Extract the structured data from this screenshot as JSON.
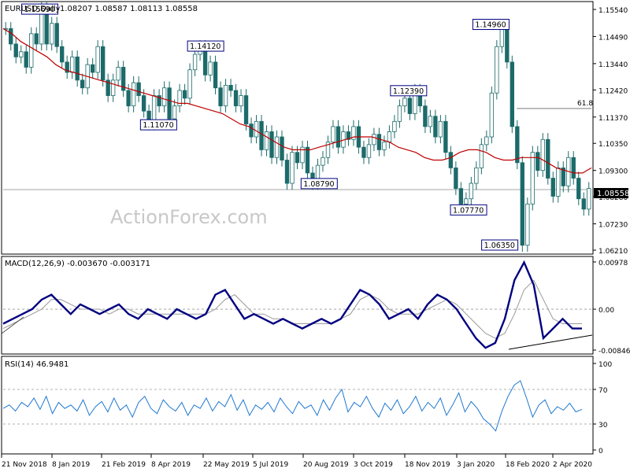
{
  "chart_data": {
    "type": "candlestick-with-indicators",
    "symbol_label": "EURUSD,Daily",
    "ohlc_label": "1.08207 1.08587 1.08113 1.08558",
    "watermark": "ActionForex.com",
    "x_ticks": [
      "21 Nov 2018",
      "8 Jan 2019",
      "21 Feb 2019",
      "8 Apr 2019",
      "22 May 2019",
      "5 Jul 2019",
      "20 Aug 2019",
      "3 Oct 2019",
      "18 Nov 2019",
      "3 Jan 2020",
      "18 Feb 2020",
      "2 Apr 2020"
    ],
    "colors": {
      "candle": "#1d6a6a",
      "ma": "#c00000",
      "macd": "#000080",
      "signal": "#888888",
      "rsi": "#1f78d0",
      "guide": "#777777"
    },
    "price_panel": {
      "y_ticks": [
        "1.15540",
        "1.14490",
        "1.13440",
        "1.12420",
        "1.11370",
        "1.10350",
        "1.09300",
        "1.08280",
        "1.07230",
        "1.06210"
      ],
      "ylim": [
        1.0621,
        1.1554
      ],
      "current_price": "1.08558",
      "fib_label": "61.8",
      "fib_level": 1.117,
      "close_series": [
        1.148,
        1.142,
        1.137,
        1.139,
        1.133,
        1.146,
        1.142,
        1.156,
        1.142,
        1.15,
        1.141,
        1.135,
        1.131,
        1.137,
        1.128,
        1.125,
        1.134,
        1.131,
        1.141,
        1.128,
        1.122,
        1.128,
        1.133,
        1.124,
        1.118,
        1.127,
        1.122,
        1.116,
        1.111,
        1.122,
        1.118,
        1.125,
        1.113,
        1.118,
        1.124,
        1.121,
        1.132,
        1.138,
        1.141,
        1.13,
        1.135,
        1.125,
        1.118,
        1.126,
        1.124,
        1.118,
        1.122,
        1.111,
        1.106,
        1.112,
        1.101,
        1.108,
        1.098,
        1.106,
        1.097,
        1.088,
        1.1,
        1.096,
        1.102,
        1.092,
        1.088,
        1.095,
        1.098,
        1.104,
        1.11,
        1.102,
        1.108,
        1.105,
        1.11,
        1.102,
        1.098,
        1.103,
        1.107,
        1.101,
        1.104,
        1.108,
        1.112,
        1.118,
        1.121,
        1.115,
        1.124,
        1.118,
        1.11,
        1.114,
        1.106,
        1.112,
        1.1,
        1.094,
        1.086,
        1.08,
        1.082,
        1.088,
        1.094,
        1.103,
        1.106,
        1.123,
        1.141,
        1.149,
        1.135,
        1.11,
        1.096,
        1.064,
        1.08,
        1.1,
        1.093,
        1.105,
        1.09,
        1.083,
        1.094,
        1.087,
        1.098,
        1.09,
        1.082,
        1.078,
        1.086
      ],
      "ma_series": [
        1.148,
        1.146,
        1.143,
        1.141,
        1.139,
        1.137,
        1.134,
        1.132,
        1.131,
        1.13,
        1.129,
        1.128,
        1.127,
        1.126,
        1.125,
        1.124,
        1.123,
        1.122,
        1.121,
        1.12,
        1.119,
        1.119,
        1.118,
        1.117,
        1.116,
        1.115,
        1.113,
        1.111,
        1.11,
        1.108,
        1.106,
        1.104,
        1.102,
        1.101,
        1.101,
        1.101,
        1.102,
        1.103,
        1.104,
        1.105,
        1.106,
        1.106,
        1.106,
        1.105,
        1.104,
        1.102,
        1.101,
        1.1,
        1.098,
        1.097,
        1.097,
        1.098,
        1.1,
        1.101,
        1.101,
        1.1,
        1.098,
        1.097,
        1.097,
        1.098,
        1.098,
        1.098,
        1.096,
        1.094,
        1.093,
        1.092,
        1.092,
        1.094
      ]
    },
    "annotations": [
      {
        "label": "1.15690",
        "value": 1.1569,
        "pos": 0.085,
        "side": "left"
      },
      {
        "label": "1.11070",
        "value": 1.1107,
        "pos": 0.295,
        "side": "left"
      },
      {
        "label": "1.14120",
        "value": 1.1412,
        "pos": 0.375,
        "side": "left"
      },
      {
        "label": "1.08790",
        "value": 1.0879,
        "pos": 0.568,
        "side": "left"
      },
      {
        "label": "1.12390",
        "value": 1.1239,
        "pos": 0.72,
        "side": "left"
      },
      {
        "label": "1.14960",
        "value": 1.1496,
        "pos": 0.86,
        "side": "left"
      },
      {
        "label": "1.07770",
        "value": 1.0777,
        "pos": 0.822,
        "side": "left"
      },
      {
        "label": "1.06350",
        "value": 1.0635,
        "pos": 0.875,
        "side": "left"
      }
    ],
    "macd_panel": {
      "label": "MACD(12,26,9) -0.003670 -0.003171",
      "y_ticks": [
        "0.00978",
        "0.00",
        "-0.008464"
      ],
      "ylim": [
        -0.008464,
        0.00978
      ],
      "macd_series": [
        -0.003,
        -0.002,
        -0.001,
        0.0,
        0.002,
        0.003,
        0.001,
        -0.001,
        0.001,
        0.0,
        -0.001,
        0.0,
        0.001,
        -0.001,
        -0.002,
        0.0,
        -0.001,
        -0.002,
        0.0,
        -0.001,
        -0.002,
        -0.001,
        0.003,
        0.004,
        0.001,
        -0.002,
        -0.001,
        -0.002,
        -0.003,
        -0.002,
        -0.003,
        -0.004,
        -0.003,
        -0.002,
        -0.003,
        -0.002,
        0.001,
        0.004,
        0.003,
        0.001,
        -0.002,
        -0.001,
        0.0,
        -0.002,
        0.001,
        0.003,
        0.002,
        0.0,
        -0.003,
        -0.006,
        -0.008,
        -0.007,
        -0.002,
        0.006,
        0.0097,
        0.005,
        -0.006,
        -0.004,
        -0.002,
        -0.004,
        -0.004
      ],
      "signal_series": [
        -0.004,
        -0.003,
        -0.002,
        -0.001,
        0.0,
        0.002,
        0.002,
        0.001,
        0.0,
        0.0,
        0.0,
        -0.001,
        0.0,
        0.0,
        -0.001,
        -0.001,
        -0.001,
        -0.001,
        -0.001,
        -0.001,
        -0.001,
        -0.001,
        0.0,
        0.002,
        0.003,
        0.001,
        -0.001,
        -0.001,
        -0.002,
        -0.002,
        -0.003,
        -0.003,
        -0.003,
        -0.003,
        -0.003,
        -0.002,
        -0.001,
        0.002,
        0.003,
        0.002,
        0.0,
        -0.001,
        -0.001,
        -0.001,
        0.0,
        0.001,
        0.002,
        0.001,
        -0.001,
        -0.003,
        -0.005,
        -0.006,
        -0.005,
        -0.001,
        0.004,
        0.006,
        0.002,
        -0.002,
        -0.003,
        -0.003,
        -0.003
      ]
    },
    "rsi_panel": {
      "label": "RSI(14) 46.9481",
      "y_ticks": [
        "100",
        "70",
        "30",
        "0"
      ],
      "ylim": [
        0,
        100
      ],
      "levels": [
        70,
        30
      ],
      "rsi_series": [
        48,
        52,
        45,
        55,
        50,
        60,
        47,
        62,
        42,
        55,
        48,
        52,
        45,
        58,
        40,
        50,
        56,
        44,
        60,
        46,
        52,
        38,
        55,
        62,
        48,
        42,
        58,
        50,
        45,
        55,
        40,
        52,
        48,
        60,
        45,
        56,
        50,
        64,
        46,
        58,
        40,
        52,
        47,
        55,
        44,
        60,
        50,
        42,
        56,
        48,
        52,
        40,
        58,
        46,
        60,
        70,
        44,
        55,
        50,
        62,
        48,
        38,
        54,
        46,
        58,
        42,
        50,
        62,
        45,
        55,
        48,
        60,
        40,
        52,
        66,
        44,
        56,
        48,
        36,
        30,
        22,
        45,
        62,
        75,
        80,
        60,
        38,
        52,
        58,
        42,
        50,
        46,
        54,
        44,
        47
      ]
    }
  }
}
